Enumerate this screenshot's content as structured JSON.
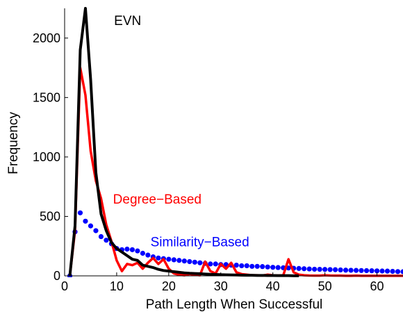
{
  "chart_data": {
    "type": "line",
    "title": "",
    "xlabel": "Path Length When Successful",
    "ylabel": "Frequency",
    "xlim": [
      0,
      65
    ],
    "ylim": [
      0,
      2250
    ],
    "xticks": [
      0,
      10,
      20,
      30,
      40,
      50,
      60
    ],
    "yticks": [
      0,
      500,
      1000,
      1500,
      2000
    ],
    "grid": false,
    "annotations": [
      {
        "text": "EVN",
        "x": 9.5,
        "y": 2150,
        "color": "#000000"
      },
      {
        "text": "Degree−Based",
        "x": 9.3,
        "y": 650,
        "color": "#ff0000"
      },
      {
        "text": "Similarity−Based",
        "x": 16.5,
        "y": 290,
        "color": "#0000ff"
      }
    ],
    "series": [
      {
        "name": "EVN",
        "style": "line",
        "color": "#000000",
        "x": [
          1,
          2,
          3,
          4,
          5,
          6,
          7,
          8,
          9,
          10,
          11,
          12,
          13,
          14,
          15,
          16,
          17,
          18,
          19,
          20,
          21,
          22,
          23,
          24,
          25,
          26,
          27,
          28,
          29,
          30,
          31,
          32,
          33,
          34,
          35,
          36,
          37,
          38,
          39,
          40,
          41,
          42,
          43,
          44,
          45
        ],
        "y": [
          0,
          420,
          1900,
          2250,
          1650,
          870,
          520,
          380,
          280,
          230,
          200,
          170,
          140,
          130,
          90,
          80,
          70,
          55,
          45,
          40,
          35,
          30,
          25,
          22,
          20,
          18,
          15,
          13,
          12,
          10,
          9,
          8,
          7,
          6,
          5,
          5,
          4,
          4,
          3,
          3,
          2,
          2,
          2,
          1,
          1
        ]
      },
      {
        "name": "Degree−Based",
        "style": "line",
        "color": "#ff0000",
        "x": [
          1,
          2,
          3,
          4,
          5,
          6,
          7,
          8,
          9,
          10,
          11,
          12,
          13,
          14,
          15,
          16,
          17,
          18,
          19,
          20,
          21,
          22,
          23,
          24,
          25,
          26,
          27,
          28,
          29,
          30,
          31,
          32,
          33,
          34,
          35,
          36,
          37,
          38,
          39,
          40,
          41,
          42,
          43,
          44,
          45,
          46,
          47,
          48,
          49,
          50,
          51,
          52,
          53,
          54,
          55,
          56,
          57,
          58,
          59,
          60,
          61,
          62,
          63,
          64,
          65
        ],
        "y": [
          0,
          380,
          1750,
          1520,
          1050,
          800,
          650,
          430,
          290,
          130,
          40,
          100,
          90,
          110,
          60,
          110,
          150,
          100,
          140,
          60,
          20,
          10,
          5,
          15,
          10,
          5,
          120,
          40,
          20,
          100,
          60,
          110,
          30,
          15,
          10,
          5,
          5,
          3,
          10,
          5,
          3,
          5,
          140,
          30,
          10,
          5,
          3,
          2,
          2,
          5,
          3,
          2,
          2,
          1,
          1,
          2,
          1,
          1,
          1,
          1,
          1,
          1,
          1,
          1,
          1
        ]
      },
      {
        "name": "Similarity−Based",
        "style": "dots",
        "color": "#0000ff",
        "x": [
          1,
          2,
          3,
          4,
          5,
          6,
          7,
          8,
          9,
          10,
          11,
          12,
          13,
          14,
          15,
          16,
          17,
          18,
          19,
          20,
          21,
          22,
          23,
          24,
          25,
          26,
          27,
          28,
          29,
          30,
          31,
          32,
          33,
          34,
          35,
          36,
          37,
          38,
          39,
          40,
          41,
          42,
          43,
          44,
          45,
          46,
          47,
          48,
          49,
          50,
          51,
          52,
          53,
          54,
          55,
          56,
          57,
          58,
          59,
          60,
          61,
          62,
          63,
          64,
          65
        ],
        "y": [
          0,
          370,
          530,
          460,
          420,
          380,
          330,
          300,
          270,
          230,
          220,
          225,
          220,
          210,
          190,
          175,
          160,
          150,
          145,
          140,
          135,
          130,
          125,
          120,
          115,
          110,
          105,
          100,
          100,
          95,
          95,
          90,
          90,
          85,
          85,
          80,
          80,
          78,
          75,
          72,
          70,
          68,
          66,
          64,
          62,
          60,
          58,
          56,
          55,
          54,
          53,
          52,
          50,
          48,
          47,
          46,
          45,
          44,
          43,
          42,
          41,
          40,
          38,
          36,
          35
        ]
      }
    ]
  }
}
